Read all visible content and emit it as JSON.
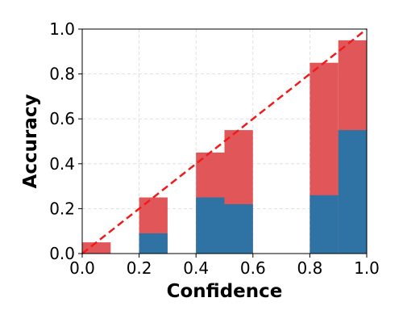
{
  "chart_data": {
    "type": "bar",
    "title": "",
    "xlabel": "Confidence",
    "ylabel": "Accuracy",
    "xlim": [
      0.0,
      1.0
    ],
    "ylim": [
      0.0,
      1.0
    ],
    "xticks": [
      "0.0",
      "0.2",
      "0.4",
      "0.6",
      "0.8",
      "1.0"
    ],
    "yticks": [
      "0.0",
      "0.2",
      "0.4",
      "0.6",
      "0.8",
      "1.0"
    ],
    "grid": true,
    "bins": [
      {
        "x0": 0.0,
        "x1": 0.1
      },
      {
        "x0": 0.1,
        "x1": 0.2
      },
      {
        "x0": 0.2,
        "x1": 0.3
      },
      {
        "x0": 0.3,
        "x1": 0.4
      },
      {
        "x0": 0.4,
        "x1": 0.5
      },
      {
        "x0": 0.5,
        "x1": 0.6
      },
      {
        "x0": 0.6,
        "x1": 0.7
      },
      {
        "x0": 0.7,
        "x1": 0.8
      },
      {
        "x0": 0.8,
        "x1": 0.9
      },
      {
        "x0": 0.9,
        "x1": 1.0
      }
    ],
    "series": [
      {
        "values": [
          0.05,
          0.0,
          0.25,
          0.0,
          0.45,
          0.55,
          0.0,
          0.0,
          0.85,
          0.95
        ],
        "color": "#e15759"
      },
      {
        "values": [
          0.0,
          0.0,
          0.09,
          0.0,
          0.25,
          0.22,
          0.0,
          0.0,
          0.26,
          0.55
        ],
        "color": "#2e73a4"
      }
    ],
    "reference_line": {
      "x": [
        0.0,
        1.0
      ],
      "y": [
        0.0,
        1.0
      ],
      "color": "#ee1c1c",
      "style": "dashed"
    }
  }
}
